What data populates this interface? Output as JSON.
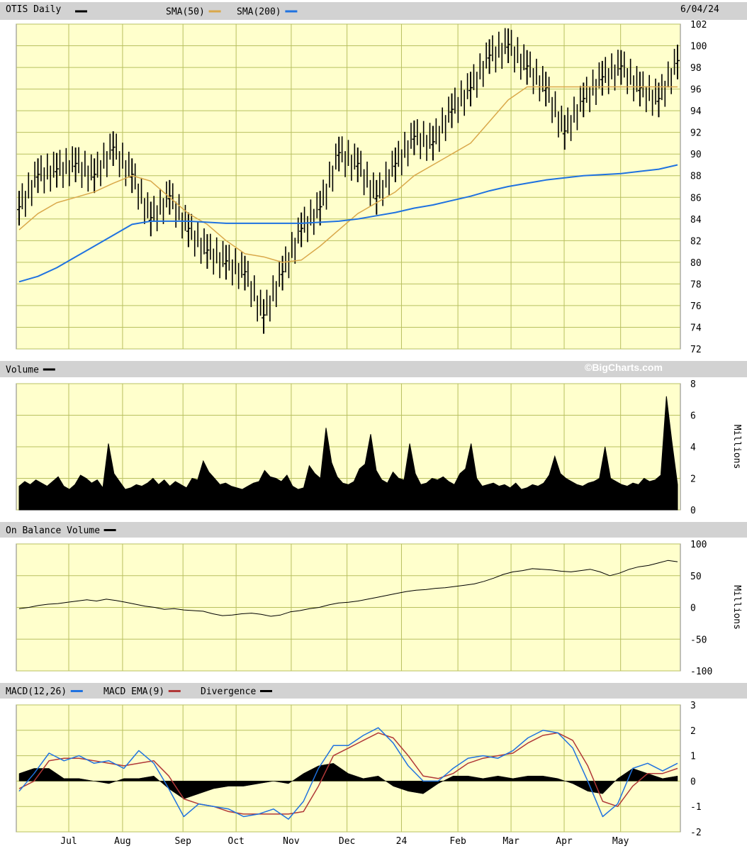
{
  "header": {
    "title": "OTIS Daily",
    "date": "6/04/24",
    "watermark": "©BigCharts.com"
  },
  "colors": {
    "plot_bg": "#ffffcc",
    "grid": "#b8c060",
    "strip_bg": "#d2d2d2",
    "sma50": "#d9a84a",
    "sma200": "#1f72e0",
    "macd": "#1f72e0",
    "macd_ema": "#b03838",
    "price": "#000000"
  },
  "x_axis": {
    "month_labels": [
      "Jul",
      "Aug",
      "Sep",
      "Oct",
      "Nov",
      "Dec",
      "24",
      "Feb",
      "Mar",
      "Apr",
      "May"
    ],
    "month_fractions": [
      0.079,
      0.16,
      0.251,
      0.331,
      0.414,
      0.498,
      0.58,
      0.665,
      0.745,
      0.825,
      0.91
    ]
  },
  "chart_data": [
    {
      "panel": "price",
      "type": "ohlc",
      "legend": [
        {
          "label": "OTIS Daily",
          "swatch": "#000000"
        },
        {
          "label": "SMA(50)",
          "swatch": "#d9a84a"
        },
        {
          "label": "SMA(200)",
          "swatch": "#1f72e0"
        }
      ],
      "y_ticks": [
        "102",
        "100",
        "98",
        "96",
        "94",
        "92",
        "90",
        "88",
        "86",
        "84",
        "82",
        "80",
        "78",
        "76",
        "74",
        "72"
      ],
      "ylim": [
        72,
        102
      ],
      "x": [
        "Jun 5",
        "Jun 20",
        "Jul 3",
        "Jul 20",
        "Aug 1",
        "Aug 10",
        "Aug 20",
        "Sep 1",
        "Sep 15",
        "Sep 28",
        "Oct 10",
        "Oct 25",
        "Oct 27",
        "Nov 1",
        "Nov 10",
        "Nov 20",
        "Dec 1",
        "Dec 11",
        "Dec 20",
        "Jan 3",
        "Jan 15",
        "Jan 25",
        "Feb 5",
        "Feb 15",
        "Feb 25",
        "Mar 5",
        "Mar 15",
        "Mar 25",
        "Apr 5",
        "Apr 15",
        "Apr 25",
        "May 1",
        "May 10",
        "May 20",
        "May 28",
        "Jun 4"
      ],
      "series": [
        {
          "name": "Price",
          "values": [
            85,
            88,
            88.5,
            89,
            88,
            90.5,
            88,
            84,
            86,
            83,
            81,
            80,
            79,
            75,
            79,
            83,
            85,
            90,
            89,
            86,
            89,
            91.5,
            91,
            94,
            96,
            99,
            100,
            98,
            96,
            92,
            95,
            97,
            98,
            96,
            95,
            98.5
          ]
        },
        {
          "name": "SMA(50)",
          "values": [
            83,
            84.5,
            85.5,
            86,
            86.5,
            87.3,
            88,
            87.5,
            86,
            84.5,
            83.5,
            82,
            80.8,
            80.5,
            80,
            80.2,
            81.5,
            83,
            84.5,
            85.5,
            86.5,
            88,
            89,
            90,
            91,
            93,
            95,
            96.2,
            96.2,
            96.2,
            96.2,
            96.2,
            96.2,
            96.2,
            96.2,
            96.2
          ]
        },
        {
          "name": "SMA(200)",
          "values": [
            78.2,
            78.7,
            79.5,
            80.5,
            81.5,
            82.5,
            83.5,
            83.8,
            83.8,
            83.8,
            83.7,
            83.6,
            83.6,
            83.6,
            83.6,
            83.6,
            83.7,
            83.8,
            84,
            84.3,
            84.6,
            85,
            85.3,
            85.7,
            86.1,
            86.6,
            87,
            87.3,
            87.6,
            87.8,
            88,
            88.1,
            88.2,
            88.4,
            88.6,
            89
          ]
        }
      ]
    },
    {
      "panel": "volume",
      "type": "area",
      "legend": [
        {
          "label": "Volume",
          "swatch": "#000000"
        }
      ],
      "y_ticks": [
        "8",
        "6",
        "4",
        "2",
        "0"
      ],
      "ylim": [
        0,
        8
      ],
      "ylabel": "Millions",
      "values": [
        1.5,
        1.8,
        1.6,
        1.9,
        1.7,
        1.5,
        1.8,
        2.1,
        1.5,
        1.3,
        1.6,
        2.2,
        2.0,
        1.7,
        1.9,
        1.4,
        4.2,
        2.3,
        1.8,
        1.3,
        1.4,
        1.6,
        1.5,
        1.7,
        2.0,
        1.6,
        1.9,
        1.5,
        1.8,
        1.6,
        1.4,
        2.0,
        1.9,
        3.1,
        2.4,
        2.0,
        1.6,
        1.7,
        1.5,
        1.4,
        1.3,
        1.5,
        1.7,
        1.8,
        2.5,
        2.1,
        2.0,
        1.8,
        2.2,
        1.5,
        1.3,
        1.4,
        2.8,
        2.3,
        2.0,
        5.2,
        3.0,
        2.1,
        1.7,
        1.6,
        1.8,
        2.6,
        2.9,
        4.8,
        2.5,
        1.9,
        1.7,
        2.4,
        2.0,
        1.9,
        4.2,
        2.3,
        1.6,
        1.7,
        2.0,
        1.9,
        2.1,
        1.8,
        1.6,
        2.3,
        2.6,
        4.2,
        2.0,
        1.5,
        1.6,
        1.7,
        1.5,
        1.6,
        1.4,
        1.7,
        1.3,
        1.4,
        1.6,
        1.5,
        1.7,
        2.2,
        3.4,
        2.3,
        2.0,
        1.8,
        1.6,
        1.5,
        1.7,
        1.8,
        2.0,
        4.0,
        2.0,
        1.8,
        1.6,
        1.5,
        1.7,
        1.6,
        2.0,
        1.8,
        1.9,
        2.2,
        7.2,
        4.3,
        1.6
      ]
    },
    {
      "panel": "obv",
      "type": "line",
      "legend": [
        {
          "label": "On Balance Volume",
          "swatch": "#000000"
        }
      ],
      "y_ticks": [
        "100",
        "50",
        "0",
        "-50",
        "-100"
      ],
      "ylim": [
        -100,
        100
      ],
      "ylabel": "Millions",
      "values": [
        -2,
        0,
        3,
        5,
        6,
        8,
        10,
        12,
        10,
        13,
        11,
        8,
        5,
        2,
        0,
        -3,
        -2,
        -4,
        -5,
        -6,
        -10,
        -13,
        -12,
        -10,
        -9,
        -11,
        -14,
        -12,
        -7,
        -5,
        -2,
        0,
        4,
        7,
        8,
        10,
        13,
        16,
        19,
        22,
        25,
        27,
        28,
        30,
        31,
        33,
        35,
        37,
        41,
        46,
        52,
        56,
        58,
        61,
        60,
        59,
        57,
        56,
        58,
        60,
        56,
        50,
        54,
        60,
        64,
        66,
        70,
        74,
        72
      ]
    },
    {
      "panel": "macd",
      "type": "line",
      "legend": [
        {
          "label": "MACD(12,26)",
          "swatch": "#1f72e0"
        },
        {
          "label": "MACD EMA(9)",
          "swatch": "#b03838"
        },
        {
          "label": "Divergence",
          "swatch": "#000000"
        }
      ],
      "y_ticks": [
        "3",
        "2",
        "1",
        "0",
        "-1",
        "-2"
      ],
      "ylim": [
        -2,
        3
      ],
      "series": [
        {
          "name": "MACD(12,26)",
          "values": [
            -0.4,
            0.3,
            1.1,
            0.8,
            1.0,
            0.7,
            0.8,
            0.5,
            1.2,
            0.7,
            -0.3,
            -1.4,
            -0.9,
            -1.0,
            -1.1,
            -1.4,
            -1.3,
            -1.1,
            -1.5,
            -0.8,
            0.5,
            1.4,
            1.4,
            1.8,
            2.1,
            1.5,
            0.6,
            0.0,
            0.0,
            0.5,
            0.9,
            1.0,
            0.9,
            1.2,
            1.7,
            2.0,
            1.9,
            1.3,
            0.0,
            -1.4,
            -0.9,
            0.5,
            0.7,
            0.4,
            0.7
          ]
        },
        {
          "name": "MACD EMA(9)",
          "values": [
            -0.3,
            0.0,
            0.8,
            0.9,
            0.9,
            0.8,
            0.7,
            0.6,
            0.7,
            0.8,
            0.2,
            -0.7,
            -0.9,
            -1.0,
            -1.2,
            -1.3,
            -1.3,
            -1.3,
            -1.3,
            -1.2,
            -0.2,
            1.0,
            1.3,
            1.6,
            1.9,
            1.7,
            1.0,
            0.2,
            0.1,
            0.3,
            0.7,
            0.9,
            1.0,
            1.1,
            1.5,
            1.8,
            1.9,
            1.6,
            0.6,
            -0.8,
            -1.0,
            -0.2,
            0.3,
            0.3,
            0.5
          ]
        }
      ],
      "divergence": [
        0.3,
        0.5,
        0.5,
        0.1,
        0.1,
        0.0,
        -0.1,
        0.1,
        0.1,
        0.2,
        -0.3,
        -0.7,
        -0.5,
        -0.3,
        -0.2,
        -0.2,
        -0.1,
        0.0,
        -0.1,
        0.3,
        0.6,
        0.7,
        0.3,
        0.1,
        0.2,
        -0.2,
        -0.4,
        -0.5,
        -0.1,
        0.2,
        0.2,
        0.1,
        0.2,
        0.1,
        0.2,
        0.2,
        0.1,
        -0.1,
        -0.4,
        -0.5,
        0.1,
        0.5,
        0.3,
        0.1,
        0.2
      ]
    }
  ]
}
